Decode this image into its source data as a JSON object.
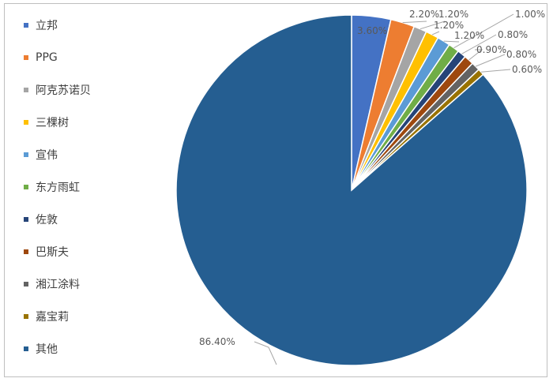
{
  "chart_data": {
    "type": "pie",
    "title": "",
    "legend_position": "left",
    "slices": [
      {
        "label": "立邦",
        "value": 3.6,
        "display": "3.60%",
        "color": "#4472c4"
      },
      {
        "label": "PPG",
        "value": 2.2,
        "display": "2.20%",
        "color": "#ed7d31"
      },
      {
        "label": "阿克苏诺贝",
        "value": 1.2,
        "display": "1.20%",
        "color": "#a5a5a5"
      },
      {
        "label": "三棵树",
        "value": 1.2,
        "display": "1.20%",
        "color": "#ffc000"
      },
      {
        "label": "宣伟",
        "value": 1.2,
        "display": "1.20%",
        "color": "#5b9bd5"
      },
      {
        "label": "东方雨虹",
        "value": 1.0,
        "display": "1.00%",
        "color": "#70ad47"
      },
      {
        "label": "佐敦",
        "value": 0.8,
        "display": "0.80%",
        "color": "#264478"
      },
      {
        "label": "巴斯夫",
        "value": 0.9,
        "display": "0.90%",
        "color": "#9e480e"
      },
      {
        "label": "湘江涂料",
        "value": 0.8,
        "display": "0.80%",
        "color": "#636363"
      },
      {
        "label": "嘉宝莉",
        "value": 0.6,
        "display": "0.60%",
        "color": "#997300"
      },
      {
        "label": "其他",
        "value": 86.4,
        "display": "86.40%",
        "color": "#255e91"
      }
    ]
  }
}
